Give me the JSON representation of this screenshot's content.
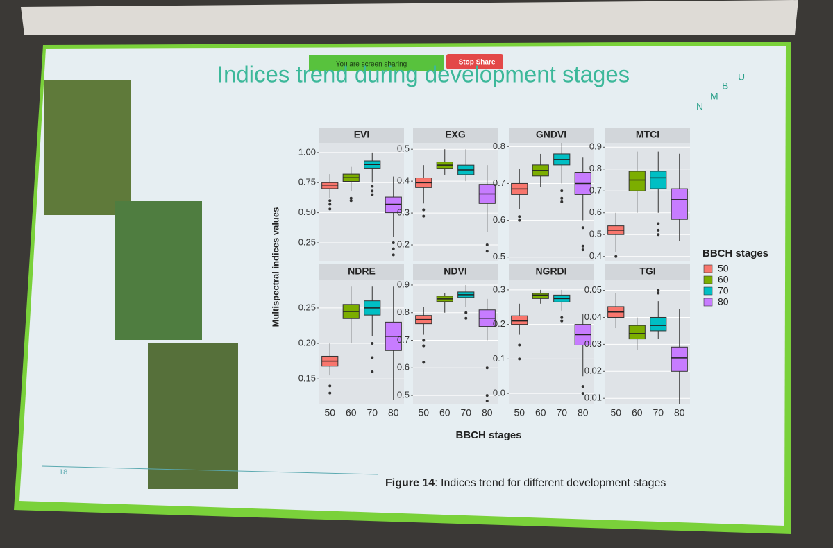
{
  "sharing_bar": {
    "status": "You are screen sharing",
    "button": "Stop Share"
  },
  "slide": {
    "title": "Indices trend during development stages",
    "logo": [
      "U",
      "B",
      "M",
      "N"
    ],
    "page_number": "18",
    "caption_bold": "Figure 14",
    "caption_rest": ": Indices trend for different development stages"
  },
  "figure": {
    "x_label": "BBCH stages",
    "y_label": "Multispectral indices values",
    "legend": {
      "title": "BBCH stages",
      "labels": [
        "50",
        "60",
        "70",
        "80"
      ],
      "colors": [
        "#f8766d",
        "#7cae00",
        "#00bfc4",
        "#c77cff"
      ]
    }
  },
  "chart_data": [
    {
      "type": "box",
      "title": "EVI",
      "ylim": [
        0.1,
        1.08
      ],
      "yticks": [
        {
          "value": 0.25,
          "label": "0.25"
        },
        {
          "value": 0.5,
          "label": "0.50"
        },
        {
          "value": 0.75,
          "label": "0.75"
        },
        {
          "value": 1,
          "label": "1.00"
        }
      ],
      "boxes": [
        {
          "low": 0.62,
          "q1": 0.7,
          "median": 0.73,
          "q3": 0.75,
          "high": 0.82,
          "outliers": [
            0.6,
            0.57,
            0.53
          ]
        },
        {
          "low": 0.68,
          "q1": 0.76,
          "median": 0.79,
          "q3": 0.82,
          "high": 0.88,
          "outliers": [
            0.62,
            0.6
          ]
        },
        {
          "low": 0.75,
          "q1": 0.87,
          "median": 0.9,
          "q3": 0.93,
          "high": 1.0,
          "outliers": [
            0.72,
            0.68,
            0.65
          ]
        },
        {
          "low": 0.3,
          "q1": 0.5,
          "median": 0.57,
          "q3": 0.63,
          "high": 0.8,
          "outliers": [
            0.25,
            0.2,
            0.15
          ]
        }
      ]
    },
    {
      "type": "box",
      "title": "EXG",
      "ylim": [
        0.15,
        0.52
      ],
      "yticks": [
        0.2,
        0.3,
        0.4,
        0.5
      ],
      "boxes": [
        {
          "low": 0.33,
          "q1": 0.38,
          "median": 0.395,
          "q3": 0.41,
          "high": 0.45,
          "outliers": [
            0.31,
            0.29
          ]
        },
        {
          "low": 0.42,
          "q1": 0.44,
          "median": 0.45,
          "q3": 0.46,
          "high": 0.5,
          "outliers": []
        },
        {
          "low": 0.4,
          "q1": 0.42,
          "median": 0.435,
          "q3": 0.45,
          "high": 0.5,
          "outliers": []
        },
        {
          "low": 0.24,
          "q1": 0.33,
          "median": 0.36,
          "q3": 0.39,
          "high": 0.45,
          "outliers": [
            0.2,
            0.18
          ]
        }
      ]
    },
    {
      "type": "box",
      "title": "GNDVI",
      "ylim": [
        0.49,
        0.81
      ],
      "yticks": [
        0.5,
        0.6,
        0.7,
        0.8
      ],
      "boxes": [
        {
          "low": 0.63,
          "q1": 0.67,
          "median": 0.685,
          "q3": 0.7,
          "high": 0.74,
          "outliers": [
            0.61,
            0.6
          ]
        },
        {
          "low": 0.69,
          "q1": 0.72,
          "median": 0.735,
          "q3": 0.75,
          "high": 0.78,
          "outliers": []
        },
        {
          "low": 0.7,
          "q1": 0.75,
          "median": 0.765,
          "q3": 0.78,
          "high": 0.81,
          "outliers": [
            0.68,
            0.66,
            0.65
          ]
        },
        {
          "low": 0.6,
          "q1": 0.67,
          "median": 0.7,
          "q3": 0.73,
          "high": 0.77,
          "outliers": [
            0.58,
            0.53,
            0.52
          ]
        }
      ]
    },
    {
      "type": "box",
      "title": "MTCI",
      "ylim": [
        0.38,
        0.92
      ],
      "yticks": [
        0.4,
        0.5,
        0.6,
        0.7,
        0.8,
        0.9
      ],
      "boxes": [
        {
          "low": 0.42,
          "q1": 0.5,
          "median": 0.52,
          "q3": 0.54,
          "high": 0.6,
          "outliers": [
            0.4
          ]
        },
        {
          "low": 0.6,
          "q1": 0.7,
          "median": 0.75,
          "q3": 0.79,
          "high": 0.88,
          "outliers": []
        },
        {
          "low": 0.6,
          "q1": 0.71,
          "median": 0.76,
          "q3": 0.79,
          "high": 0.88,
          "outliers": [
            0.55,
            0.52,
            0.5
          ]
        },
        {
          "low": 0.47,
          "q1": 0.57,
          "median": 0.66,
          "q3": 0.71,
          "high": 0.87,
          "outliers": []
        }
      ]
    },
    {
      "type": "box",
      "title": "NDRE",
      "ylim": [
        0.115,
        0.29
      ],
      "categories": [
        "50",
        "60",
        "70",
        "80"
      ],
      "yticks": [
        0.15,
        {
          "value": 0.2,
          "label": "0.20"
        },
        0.25
      ],
      "boxes": [
        {
          "low": 0.155,
          "q1": 0.168,
          "median": 0.175,
          "q3": 0.182,
          "high": 0.2,
          "outliers": [
            0.14,
            0.13
          ]
        },
        {
          "low": 0.2,
          "q1": 0.235,
          "median": 0.245,
          "q3": 0.255,
          "high": 0.28,
          "outliers": []
        },
        {
          "low": 0.21,
          "q1": 0.24,
          "median": 0.25,
          "q3": 0.26,
          "high": 0.28,
          "outliers": [
            0.2,
            0.18,
            0.16
          ]
        },
        {
          "low": 0.12,
          "q1": 0.19,
          "median": 0.21,
          "q3": 0.23,
          "high": 0.28,
          "outliers": []
        }
      ]
    },
    {
      "type": "box",
      "title": "NDVI",
      "ylim": [
        0.47,
        0.92
      ],
      "categories": [
        "50",
        "60",
        "70",
        "80"
      ],
      "yticks": [
        0.5,
        0.6,
        0.7,
        0.8,
        0.9
      ],
      "boxes": [
        {
          "low": 0.72,
          "q1": 0.76,
          "median": 0.775,
          "q3": 0.79,
          "high": 0.82,
          "outliers": [
            0.7,
            0.68,
            0.62
          ]
        },
        {
          "low": 0.8,
          "q1": 0.84,
          "median": 0.85,
          "q3": 0.86,
          "high": 0.87,
          "outliers": []
        },
        {
          "low": 0.82,
          "q1": 0.855,
          "median": 0.865,
          "q3": 0.875,
          "high": 0.9,
          "outliers": [
            0.8,
            0.78
          ]
        },
        {
          "low": 0.7,
          "q1": 0.75,
          "median": 0.78,
          "q3": 0.81,
          "high": 0.85,
          "outliers": [
            0.6,
            0.5,
            0.48
          ]
        }
      ]
    },
    {
      "type": "box",
      "title": "NGRDI",
      "ylim": [
        -0.03,
        0.33
      ],
      "categories": [
        "50",
        "60",
        "70",
        "80"
      ],
      "yticks": [
        {
          "value": 0,
          "label": "0.0"
        },
        0.1,
        0.2,
        0.3
      ],
      "boxes": [
        {
          "low": 0.17,
          "q1": 0.2,
          "median": 0.21,
          "q3": 0.225,
          "high": 0.26,
          "outliers": [
            0.14,
            0.1
          ]
        },
        {
          "low": 0.26,
          "q1": 0.275,
          "median": 0.285,
          "q3": 0.29,
          "high": 0.3,
          "outliers": []
        },
        {
          "low": 0.24,
          "q1": 0.265,
          "median": 0.275,
          "q3": 0.285,
          "high": 0.3,
          "outliers": [
            0.22,
            0.21
          ]
        },
        {
          "low": 0.05,
          "q1": 0.14,
          "median": 0.17,
          "q3": 0.2,
          "high": 0.23,
          "outliers": [
            0.02,
            0
          ]
        }
      ]
    },
    {
      "type": "box",
      "title": "TGI",
      "ylim": [
        0.008,
        0.054
      ],
      "categories": [
        "50",
        "60",
        "70",
        "80"
      ],
      "yticks": [
        0.01,
        0.02,
        0.03,
        0.04,
        0.05
      ],
      "boxes": [
        {
          "low": 0.036,
          "q1": 0.04,
          "median": 0.042,
          "q3": 0.044,
          "high": 0.049,
          "outliers": []
        },
        {
          "low": 0.028,
          "q1": 0.032,
          "median": 0.034,
          "q3": 0.037,
          "high": 0.04,
          "outliers": []
        },
        {
          "low": 0.032,
          "q1": 0.035,
          "median": 0.037,
          "q3": 0.04,
          "high": 0.046,
          "outliers": [
            0.05,
            0.049
          ]
        },
        {
          "low": 0.008,
          "q1": 0.02,
          "median": 0.025,
          "q3": 0.029,
          "high": 0.043,
          "outliers": []
        }
      ]
    }
  ]
}
